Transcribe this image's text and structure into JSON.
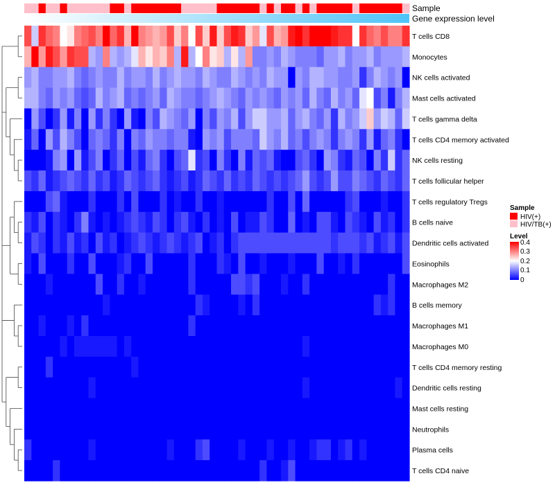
{
  "chart_data": {
    "type": "heatmap",
    "title": "",
    "annotation_labels": {
      "sample": "Sample",
      "gene_level": "Gene expression level"
    },
    "rows": [
      "T cells CD8",
      "Monocytes",
      "NK cells activated",
      "Mast cells activated",
      "T cells gamma delta",
      "T cells CD4 memory activated",
      "NK cells resting",
      "T cells follicular helper",
      "T cells regulatory  Tregs",
      "B cells naive",
      "Dendritic cells activated",
      "Eosinophils",
      "Macrophages M2",
      "B cells memory",
      "Macrophages M1",
      "Macrophages M0",
      "T cells CD4 memory resting",
      "Dendritic cells resting",
      "Mast cells resting",
      "Neutrophils",
      "Plasma cells",
      "T cells CD4 naive"
    ],
    "sample_groups": [
      "HIV/TB(+)",
      "HIV/TB(+)",
      "HIV(+)",
      "HIV/TB(+)",
      "HIV/TB(+)",
      "HIV(+)",
      "HIV/TB(+)",
      "HIV/TB(+)",
      "HIV/TB(+)",
      "HIV/TB(+)",
      "HIV/TB(+)",
      "HIV/TB(+)",
      "HIV(+)",
      "HIV(+)",
      "HIV/TB(+)",
      "HIV(+)",
      "HIV(+)",
      "HIV(+)",
      "HIV(+)",
      "HIV(+)",
      "HIV(+)",
      "HIV(+)",
      "HIV/TB(+)",
      "HIV/TB(+)",
      "HIV/TB(+)",
      "HIV/TB(+)",
      "HIV/TB(+)",
      "HIV(+)",
      "HIV(+)",
      "HIV(+)",
      "HIV(+)",
      "HIV(+)",
      "HIV(+)",
      "HIV/TB(+)",
      "HIV(+)",
      "HIV/TB(+)",
      "HIV(+)",
      "HIV(+)",
      "HIV/TB(+)",
      "HIV(+)",
      "HIV/TB(+)",
      "HIV(+)",
      "HIV(+)",
      "HIV(+)",
      "HIV(+)",
      "HIV(+)",
      "HIV/TB(+)",
      "HIV(+)",
      "HIV(+)",
      "HIV(+)",
      "HIV(+)",
      "HIV(+)",
      "HIV(+)",
      "HIV/TB(+)"
    ],
    "gene_level_range": [
      0,
      1
    ],
    "values": [
      [
        0.34,
        0.16,
        0.36,
        0.32,
        0.3,
        0.2,
        0.22,
        0.3,
        0.32,
        0.34,
        0.3,
        0.4,
        0.32,
        0.36,
        0.26,
        0.4,
        0.3,
        0.28,
        0.26,
        0.28,
        0.34,
        0.24,
        0.3,
        0.2,
        0.34,
        0.24,
        0.38,
        0.24,
        0.34,
        0.38,
        0.36,
        0.24,
        0.28,
        0.18,
        0.34,
        0.26,
        0.28,
        0.38,
        0.4,
        0.36,
        0.4,
        0.4,
        0.4,
        0.38,
        0.36,
        0.36,
        0.2,
        0.36,
        0.32,
        0.3,
        0.34,
        0.3,
        0.3,
        0.36
      ],
      [
        0.26,
        0.4,
        0.28,
        0.38,
        0.34,
        0.28,
        0.36,
        0.34,
        0.34,
        0.14,
        0.12,
        0.3,
        0.14,
        0.12,
        0.14,
        0.18,
        0.26,
        0.22,
        0.26,
        0.24,
        0.3,
        0.14,
        0.38,
        0.14,
        0.2,
        0.3,
        0.22,
        0.24,
        0.14,
        0.22,
        0.14,
        0.28,
        0.1,
        0.1,
        0.12,
        0.1,
        0.14,
        0.12,
        0.1,
        0.1,
        0.1,
        0.08,
        0.12,
        0.12,
        0.14,
        0.1,
        0.12,
        0.12,
        0.14,
        0.1,
        0.12,
        0.12,
        0.12,
        0.14
      ],
      [
        0.12,
        0.14,
        0.1,
        0.1,
        0.12,
        0.12,
        0.14,
        0.1,
        0.08,
        0.1,
        0.12,
        0.1,
        0.1,
        0.14,
        0.1,
        0.12,
        0.12,
        0.1,
        0.14,
        0.1,
        0.12,
        0.14,
        0.12,
        0.12,
        0.1,
        0.14,
        0.12,
        0.1,
        0.1,
        0.14,
        0.12,
        0.1,
        0.12,
        0.1,
        0.14,
        0.12,
        0.12,
        0.0,
        0.12,
        0.1,
        0.14,
        0.14,
        0.12,
        0.12,
        0.1,
        0.1,
        0.12,
        0.04,
        0.1,
        0.14,
        0.12,
        0.1,
        0.12,
        0.0
      ],
      [
        0.14,
        0.14,
        0.1,
        0.08,
        0.12,
        0.1,
        0.12,
        0.08,
        0.06,
        0.08,
        0.14,
        0.1,
        0.12,
        0.14,
        0.08,
        0.1,
        0.08,
        0.1,
        0.12,
        0.08,
        0.14,
        0.12,
        0.1,
        0.1,
        0.08,
        0.1,
        0.12,
        0.14,
        0.12,
        0.1,
        0.08,
        0.12,
        0.1,
        0.12,
        0.1,
        0.08,
        0.12,
        0.1,
        0.12,
        0.08,
        0.14,
        0.1,
        0.08,
        0.14,
        0.1,
        0.12,
        0.08,
        0.18,
        0.2,
        0.06,
        0.1,
        0.02,
        0.1,
        0.14
      ],
      [
        0.0,
        0.12,
        0.06,
        0.0,
        0.04,
        0.12,
        0.02,
        0.1,
        0.0,
        0.12,
        0.04,
        0.1,
        0.04,
        0.0,
        0.12,
        0.02,
        0.0,
        0.1,
        0.06,
        0.14,
        0.12,
        0.1,
        0.08,
        0.12,
        0.0,
        0.1,
        0.06,
        0.12,
        0.1,
        0.14,
        0.06,
        0.12,
        0.16,
        0.16,
        0.12,
        0.12,
        0.14,
        0.08,
        0.12,
        0.14,
        0.1,
        0.08,
        0.12,
        0.04,
        0.14,
        0.1,
        0.12,
        0.16,
        0.24,
        0.12,
        0.16,
        0.14,
        0.08,
        0.16
      ],
      [
        0.02,
        0.08,
        0.0,
        0.12,
        0.06,
        0.14,
        0.1,
        0.06,
        0.0,
        0.08,
        0.1,
        0.08,
        0.04,
        0.1,
        0.0,
        0.1,
        0.08,
        0.12,
        0.1,
        0.1,
        0.08,
        0.1,
        0.1,
        0.02,
        0.0,
        0.12,
        0.1,
        0.12,
        0.06,
        0.1,
        0.1,
        0.1,
        0.08,
        0.16,
        0.12,
        0.1,
        0.14,
        0.08,
        0.1,
        0.06,
        0.1,
        0.12,
        0.1,
        0.04,
        0.1,
        0.12,
        0.1,
        0.04,
        0.12,
        0.02,
        0.08,
        0.1,
        0.04,
        0.0
      ],
      [
        0.0,
        0.0,
        0.0,
        0.02,
        0.1,
        0.12,
        0.0,
        0.12,
        0.02,
        0.06,
        0.1,
        0.0,
        0.04,
        0.08,
        0.0,
        0.06,
        0.02,
        0.08,
        0.1,
        0.04,
        0.0,
        0.06,
        0.08,
        0.18,
        0.04,
        0.06,
        0.0,
        0.1,
        0.04,
        0.0,
        0.1,
        0.02,
        0.08,
        0.06,
        0.08,
        0.02,
        0.0,
        0.0,
        0.06,
        0.08,
        0.04,
        0.0,
        0.12,
        0.1,
        0.04,
        0.02,
        0.08,
        0.06,
        0.0,
        0.1,
        0.04,
        0.16,
        0.04,
        0.08
      ],
      [
        0.06,
        0.04,
        0.08,
        0.02,
        0.04,
        0.06,
        0.08,
        0.06,
        0.04,
        0.08,
        0.04,
        0.06,
        0.02,
        0.04,
        0.08,
        0.06,
        0.04,
        0.06,
        0.08,
        0.04,
        0.02,
        0.04,
        0.06,
        0.02,
        0.04,
        0.08,
        0.06,
        0.04,
        0.08,
        0.04,
        0.06,
        0.04,
        0.08,
        0.06,
        0.04,
        0.06,
        0.04,
        0.06,
        0.08,
        0.12,
        0.06,
        0.04,
        0.06,
        0.12,
        0.06,
        0.06,
        0.1,
        0.08,
        0.06,
        0.04,
        0.08,
        0.06,
        0.04,
        0.08
      ],
      [
        0.0,
        0.0,
        0.0,
        0.06,
        0.08,
        0.02,
        0.0,
        0.0,
        0.0,
        0.04,
        0.0,
        0.0,
        0.0,
        0.04,
        0.0,
        0.06,
        0.0,
        0.0,
        0.0,
        0.04,
        0.0,
        0.02,
        0.0,
        0.0,
        0.04,
        0.0,
        0.0,
        0.02,
        0.0,
        0.0,
        0.0,
        0.0,
        0.0,
        0.0,
        0.04,
        0.0,
        0.0,
        0.06,
        0.0,
        0.08,
        0.0,
        0.0,
        0.0,
        0.0,
        0.0,
        0.04,
        0.06,
        0.0,
        0.0,
        0.0,
        0.02,
        0.0,
        0.0,
        0.04
      ],
      [
        0.04,
        0.02,
        0.06,
        0.0,
        0.04,
        0.02,
        0.0,
        0.04,
        0.1,
        0.02,
        0.0,
        0.02,
        0.0,
        0.02,
        0.04,
        0.06,
        0.04,
        0.02,
        0.06,
        0.04,
        0.0,
        0.04,
        0.06,
        0.02,
        0.0,
        0.04,
        0.0,
        0.02,
        0.0,
        0.06,
        0.0,
        0.02,
        0.02,
        0.06,
        0.04,
        0.0,
        0.0,
        0.08,
        0.0,
        0.02,
        0.0,
        0.06,
        0.06,
        0.02,
        0.0,
        0.06,
        0.04,
        0.02,
        0.0,
        0.06,
        0.02,
        0.04,
        0.0,
        0.04
      ],
      [
        0.02,
        0.06,
        0.04,
        0.0,
        0.04,
        0.02,
        0.06,
        0.02,
        0.04,
        0.0,
        0.06,
        0.02,
        0.04,
        0.0,
        0.02,
        0.04,
        0.06,
        0.04,
        0.02,
        0.04,
        0.06,
        0.04,
        0.02,
        0.04,
        0.06,
        0.0,
        0.02,
        0.04,
        0.0,
        0.04,
        0.06,
        0.06,
        0.06,
        0.06,
        0.06,
        0.06,
        0.06,
        0.06,
        0.06,
        0.06,
        0.06,
        0.06,
        0.06,
        0.04,
        0.06,
        0.06,
        0.06,
        0.04,
        0.06,
        0.02,
        0.04,
        0.06,
        0.02,
        0.06
      ],
      [
        0.02,
        0.0,
        0.06,
        0.0,
        0.0,
        0.0,
        0.04,
        0.0,
        0.0,
        0.06,
        0.0,
        0.0,
        0.0,
        0.02,
        0.04,
        0.0,
        0.0,
        0.06,
        0.0,
        0.0,
        0.0,
        0.0,
        0.0,
        0.04,
        0.0,
        0.0,
        0.0,
        0.04,
        0.02,
        0.0,
        0.06,
        0.0,
        0.0,
        0.02,
        0.0,
        0.0,
        0.0,
        0.02,
        0.0,
        0.0,
        0.0,
        0.06,
        0.0,
        0.0,
        0.02,
        0.0,
        0.04,
        0.0,
        0.0,
        0.0,
        0.0,
        0.0,
        0.0,
        0.06
      ],
      [
        0.0,
        0.0,
        0.0,
        0.02,
        0.0,
        0.0,
        0.0,
        0.0,
        0.0,
        0.0,
        0.06,
        0.0,
        0.0,
        0.04,
        0.0,
        0.0,
        0.02,
        0.0,
        0.0,
        0.0,
        0.0,
        0.0,
        0.0,
        0.04,
        0.0,
        0.0,
        0.0,
        0.0,
        0.0,
        0.06,
        0.06,
        0.04,
        0.06,
        0.0,
        0.0,
        0.0,
        0.02,
        0.0,
        0.0,
        0.04,
        0.0,
        0.0,
        0.0,
        0.0,
        0.0,
        0.0,
        0.0,
        0.0,
        0.0,
        0.0,
        0.0,
        0.04,
        0.0,
        0.0
      ],
      [
        0.0,
        0.0,
        0.0,
        0.0,
        0.0,
        0.0,
        0.0,
        0.0,
        0.0,
        0.0,
        0.0,
        0.02,
        0.0,
        0.0,
        0.0,
        0.0,
        0.0,
        0.0,
        0.0,
        0.0,
        0.0,
        0.0,
        0.0,
        0.0,
        0.04,
        0.02,
        0.0,
        0.0,
        0.0,
        0.0,
        0.02,
        0.0,
        0.04,
        0.0,
        0.0,
        0.0,
        0.0,
        0.0,
        0.0,
        0.0,
        0.0,
        0.0,
        0.0,
        0.0,
        0.0,
        0.0,
        0.0,
        0.0,
        0.0,
        0.04,
        0.02,
        0.04,
        0.0,
        0.0
      ],
      [
        0.0,
        0.0,
        0.02,
        0.0,
        0.0,
        0.0,
        0.02,
        0.0,
        0.04,
        0.0,
        0.0,
        0.0,
        0.0,
        0.0,
        0.0,
        0.0,
        0.0,
        0.0,
        0.0,
        0.0,
        0.0,
        0.0,
        0.0,
        0.04,
        0.0,
        0.0,
        0.0,
        0.0,
        0.0,
        0.0,
        0.0,
        0.0,
        0.0,
        0.0,
        0.0,
        0.0,
        0.0,
        0.0,
        0.0,
        0.0,
        0.0,
        0.0,
        0.0,
        0.0,
        0.0,
        0.0,
        0.0,
        0.0,
        0.0,
        0.0,
        0.0,
        0.0,
        0.0,
        0.0
      ],
      [
        0.0,
        0.0,
        0.0,
        0.0,
        0.0,
        0.02,
        0.0,
        0.02,
        0.02,
        0.02,
        0.02,
        0.02,
        0.02,
        0.0,
        0.02,
        0.0,
        0.0,
        0.0,
        0.0,
        0.0,
        0.0,
        0.0,
        0.0,
        0.0,
        0.0,
        0.0,
        0.0,
        0.0,
        0.0,
        0.0,
        0.0,
        0.0,
        0.0,
        0.0,
        0.0,
        0.0,
        0.0,
        0.0,
        0.0,
        0.02,
        0.0,
        0.0,
        0.0,
        0.0,
        0.0,
        0.0,
        0.0,
        0.0,
        0.0,
        0.0,
        0.0,
        0.0,
        0.0,
        0.0
      ],
      [
        0.0,
        0.0,
        0.0,
        0.04,
        0.0,
        0.0,
        0.0,
        0.0,
        0.0,
        0.0,
        0.0,
        0.0,
        0.0,
        0.0,
        0.0,
        0.02,
        0.0,
        0.0,
        0.0,
        0.0,
        0.0,
        0.0,
        0.0,
        0.0,
        0.0,
        0.0,
        0.0,
        0.0,
        0.0,
        0.0,
        0.0,
        0.0,
        0.0,
        0.0,
        0.0,
        0.0,
        0.0,
        0.0,
        0.0,
        0.0,
        0.0,
        0.0,
        0.0,
        0.0,
        0.0,
        0.0,
        0.0,
        0.0,
        0.0,
        0.0,
        0.0,
        0.0,
        0.0,
        0.0
      ],
      [
        0.0,
        0.0,
        0.0,
        0.0,
        0.0,
        0.0,
        0.0,
        0.0,
        0.0,
        0.02,
        0.0,
        0.0,
        0.0,
        0.0,
        0.0,
        0.0,
        0.0,
        0.0,
        0.0,
        0.0,
        0.0,
        0.0,
        0.0,
        0.0,
        0.0,
        0.0,
        0.0,
        0.0,
        0.0,
        0.0,
        0.0,
        0.0,
        0.0,
        0.0,
        0.0,
        0.0,
        0.0,
        0.0,
        0.0,
        0.02,
        0.0,
        0.0,
        0.0,
        0.0,
        0.0,
        0.0,
        0.0,
        0.0,
        0.0,
        0.0,
        0.0,
        0.0,
        0.02,
        0.0
      ],
      [
        0.0,
        0.0,
        0.0,
        0.0,
        0.0,
        0.0,
        0.0,
        0.0,
        0.0,
        0.0,
        0.0,
        0.0,
        0.0,
        0.0,
        0.0,
        0.0,
        0.0,
        0.0,
        0.0,
        0.0,
        0.0,
        0.0,
        0.0,
        0.0,
        0.0,
        0.0,
        0.0,
        0.0,
        0.0,
        0.0,
        0.0,
        0.0,
        0.0,
        0.0,
        0.0,
        0.0,
        0.0,
        0.0,
        0.0,
        0.0,
        0.0,
        0.0,
        0.0,
        0.0,
        0.0,
        0.0,
        0.0,
        0.0,
        0.0,
        0.0,
        0.0,
        0.0,
        0.0,
        0.0
      ],
      [
        0.0,
        0.0,
        0.0,
        0.0,
        0.0,
        0.0,
        0.0,
        0.0,
        0.0,
        0.0,
        0.0,
        0.0,
        0.0,
        0.0,
        0.0,
        0.0,
        0.0,
        0.0,
        0.0,
        0.0,
        0.0,
        0.0,
        0.0,
        0.0,
        0.0,
        0.0,
        0.0,
        0.0,
        0.0,
        0.0,
        0.0,
        0.0,
        0.0,
        0.0,
        0.0,
        0.0,
        0.0,
        0.0,
        0.0,
        0.0,
        0.0,
        0.0,
        0.0,
        0.0,
        0.0,
        0.0,
        0.0,
        0.0,
        0.0,
        0.0,
        0.0,
        0.0,
        0.0,
        0.0
      ],
      [
        0.04,
        0.0,
        0.0,
        0.0,
        0.0,
        0.0,
        0.0,
        0.0,
        0.0,
        0.02,
        0.0,
        0.0,
        0.0,
        0.0,
        0.0,
        0.0,
        0.0,
        0.0,
        0.0,
        0.0,
        0.02,
        0.0,
        0.0,
        0.0,
        0.04,
        0.06,
        0.0,
        0.0,
        0.0,
        0.0,
        0.02,
        0.0,
        0.0,
        0.0,
        0.02,
        0.0,
        0.0,
        0.02,
        0.0,
        0.0,
        0.02,
        0.04,
        0.04,
        0.0,
        0.02,
        0.04,
        0.0,
        0.02,
        0.0,
        0.0,
        0.0,
        0.0,
        0.0,
        0.0
      ],
      [
        0.0,
        0.0,
        0.0,
        0.0,
        0.04,
        0.0,
        0.0,
        0.0,
        0.0,
        0.0,
        0.0,
        0.0,
        0.0,
        0.0,
        0.0,
        0.0,
        0.0,
        0.0,
        0.0,
        0.0,
        0.0,
        0.0,
        0.0,
        0.0,
        0.0,
        0.0,
        0.0,
        0.0,
        0.0,
        0.0,
        0.0,
        0.0,
        0.0,
        0.04,
        0.0,
        0.0,
        0.02,
        0.06,
        0.0,
        0.0,
        0.0,
        0.0,
        0.0,
        0.0,
        0.0,
        0.0,
        0.0,
        0.0,
        0.0,
        0.0,
        0.0,
        0.0,
        0.0,
        0.0
      ]
    ],
    "dendrogram_rows": [
      [
        0,
        1
      ],
      [
        [
          2,
          3
        ],
        [
          4,
          [
            5,
            [
              6,
              7
            ]
          ]
        ]
      ],
      [
        [
          8,
          [
            9,
            10
          ]
        ],
        [
          11,
          12
        ]
      ],
      [
        13,
        [
          14,
          15
        ]
      ],
      [
        [
          16,
          17
        ],
        [
          18,
          [
            19,
            [
              20,
              21
            ]
          ]
        ]
      ]
    ],
    "legends": {
      "sample": {
        "title": "Sample",
        "items": [
          {
            "label": "HIV(+)",
            "color": "#ff0000"
          },
          {
            "label": "HIV/TB(+)",
            "color": "#ffc0cb"
          }
        ]
      },
      "level": {
        "title": "Level",
        "ticks": [
          "0.4",
          "0.3",
          "0.2",
          "0.1",
          "0"
        ],
        "colors": [
          "#0000ff",
          "#ffffff",
          "#ff0000"
        ],
        "range": [
          0,
          0.4
        ]
      }
    },
    "gene_level_colors": [
      "#ffffff",
      "#4fc3f7"
    ],
    "legend_position": "right"
  }
}
